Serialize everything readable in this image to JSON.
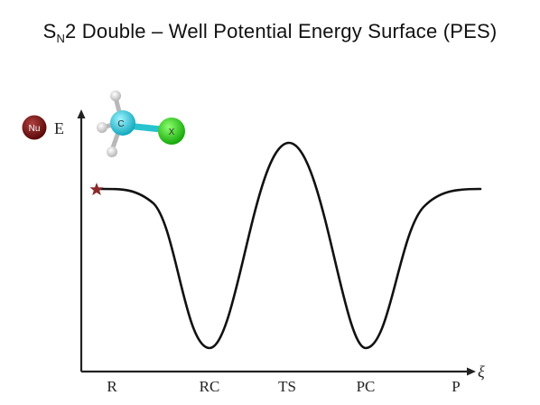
{
  "title": {
    "prefix": "S",
    "subscript": "N",
    "suffix": "2 Double – Well Potential Energy Surface (PES)"
  },
  "axes": {
    "y_label": "E",
    "x_label": "ξ",
    "x_ticks": [
      "R",
      "RC",
      "TS",
      "PC",
      "P"
    ]
  },
  "molecule": {
    "central_atom": "C",
    "leaving_group": "X",
    "nucleophile": "Nu",
    "colors": {
      "carbon": "#33ccdd",
      "leaving_group": "#22cc11",
      "nucleophile": "#7a1010",
      "hydrogen": "#dddddd"
    }
  },
  "curve": {
    "color": "#111111",
    "stationary_points": [
      {
        "label": "R",
        "relative_energy": 0.58
      },
      {
        "label": "RC",
        "relative_energy": 0.0
      },
      {
        "label": "TS",
        "relative_energy": 0.85
      },
      {
        "label": "PC",
        "relative_energy": 0.0
      },
      {
        "label": "P",
        "relative_energy": 0.58
      }
    ],
    "start_marker": {
      "symbol": "star-icon",
      "color": "#8b2a2a"
    }
  }
}
